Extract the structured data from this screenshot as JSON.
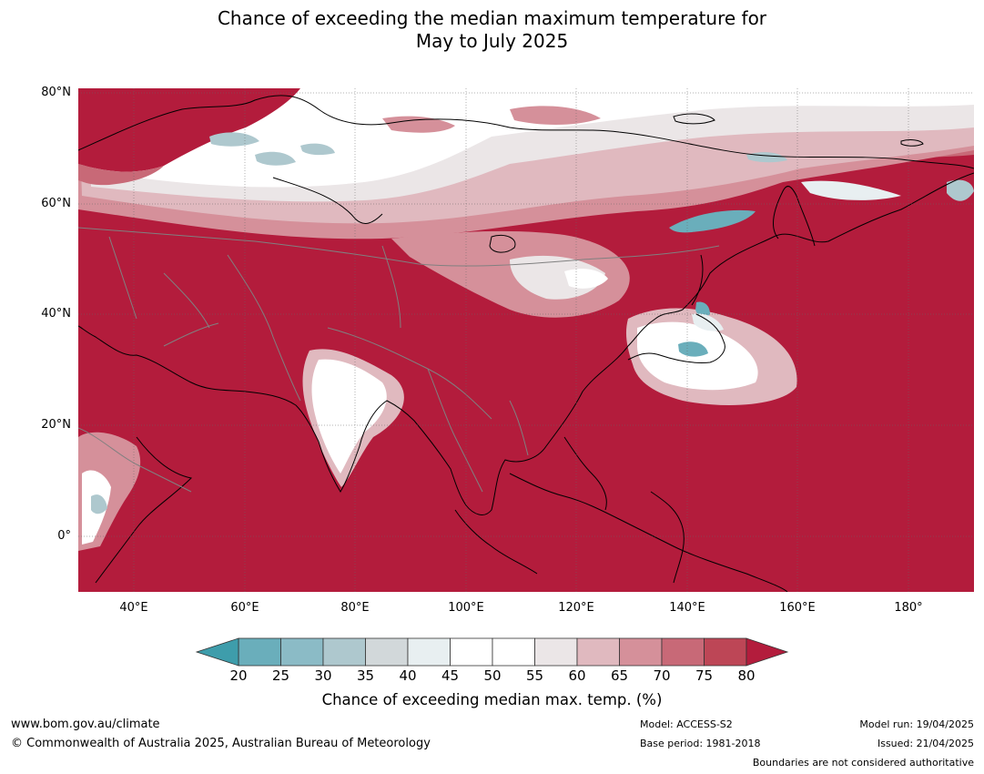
{
  "title": {
    "line1": "Chance of exceeding the median maximum temperature for",
    "line2": "May to July 2025"
  },
  "map": {
    "type": "probability map",
    "region": "Asia",
    "lat_labels": [
      "80°N",
      "60°N",
      "40°N",
      "20°N",
      "0°"
    ],
    "lon_labels": [
      "40°E",
      "60°E",
      "80°E",
      "100°E",
      "120°E",
      "140°E",
      "160°E",
      "180°"
    ],
    "lon_range": [
      30,
      192
    ],
    "lat_range": [
      -10,
      81
    ],
    "dominant_category": "above 80%",
    "regions_near_or_below_median": [
      "Scandinavia / northern Russia",
      "India",
      "Japan",
      "Kamchatka"
    ]
  },
  "colorbar": {
    "tick_labels": [
      "20",
      "25",
      "30",
      "35",
      "40",
      "45",
      "50",
      "55",
      "60",
      "65",
      "70",
      "75",
      "80"
    ],
    "colors": [
      "#3e9dab",
      "#6aaebb",
      "#8bbbc6",
      "#aec8ce",
      "#d2d8da",
      "#e8eff1",
      "#ffffff",
      "#ffffff",
      "#ebe6e7",
      "#e0b9bf",
      "#d5909a",
      "#c86977",
      "#bd4656",
      "#b31c3c"
    ],
    "label": "Chance of exceeding median max. temp. (%)"
  },
  "footer": {
    "url": "www.bom.gov.au/climate",
    "copyright": "© Commonwealth of Australia 2025, Australian Bureau of Meteorology",
    "model": "Model: ACCESS-S2",
    "base_period": "Base period: 1981-2018",
    "model_run": "Model run: 19/04/2025",
    "issued": "Issued: 21/04/2025",
    "disclaimer": "Boundaries are not considered authoritative"
  }
}
